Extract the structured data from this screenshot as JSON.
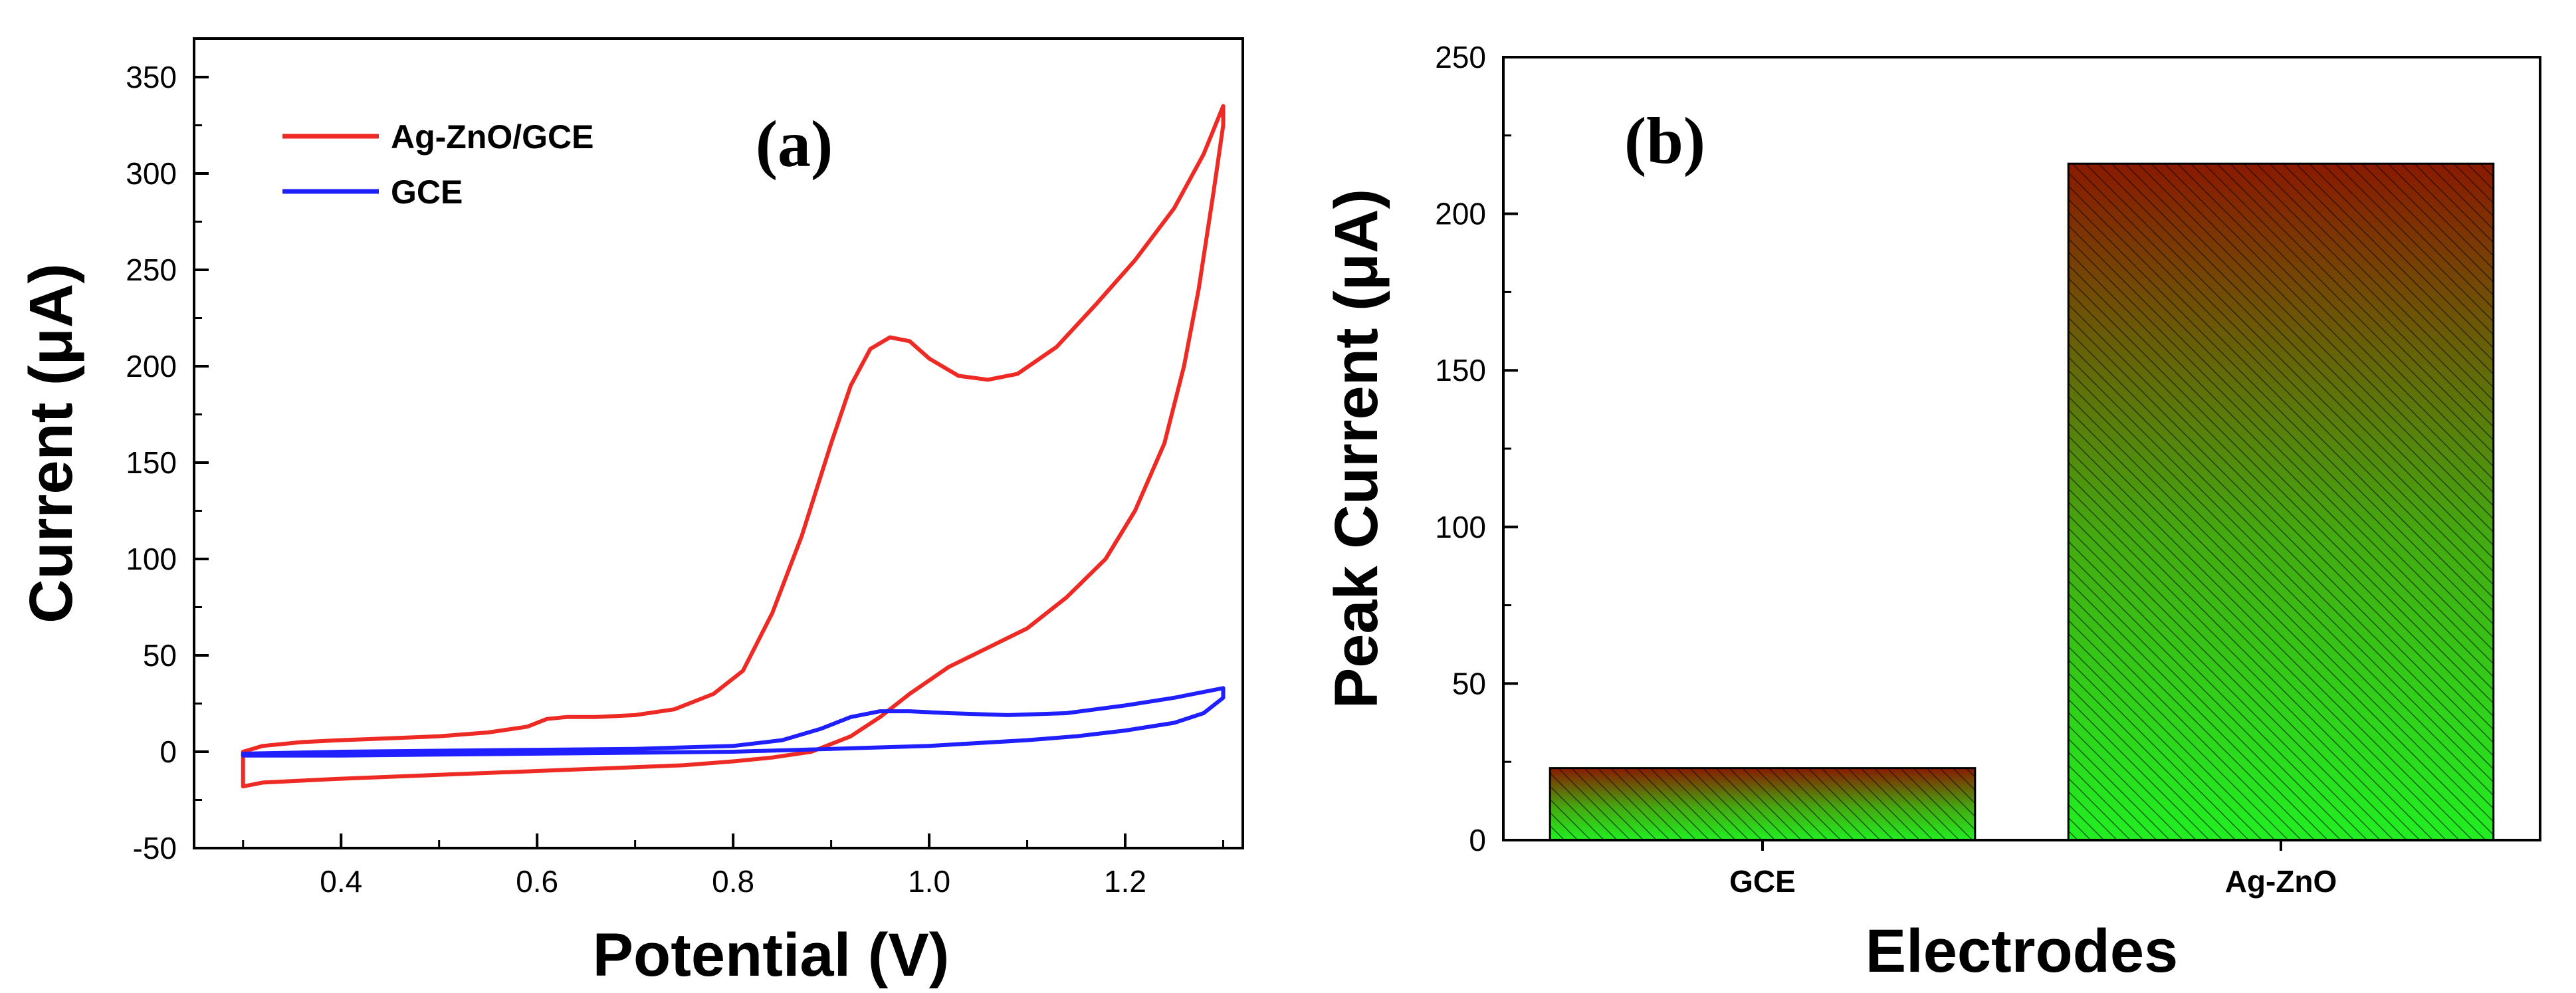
{
  "colors": {
    "ag_zno": "#ee2a24",
    "gce": "#1f1fff",
    "bar_top": "#8a1a00",
    "bar_bottom": "#22ee22"
  },
  "chart_data": [
    {
      "type": "line",
      "panel_label": "(a)",
      "xlabel": "Potential (V)",
      "ylabel": "Current (μA)",
      "xlim": [
        0.25,
        1.32
      ],
      "ylim": [
        -50,
        370
      ],
      "xticks": [
        0.4,
        0.6,
        0.8,
        1.0,
        1.2
      ],
      "xtick_labels": [
        "0.4",
        "0.6",
        "0.8",
        "1.0",
        "1.2"
      ],
      "yticks": [
        -50,
        0,
        50,
        100,
        150,
        200,
        250,
        300,
        350
      ],
      "ytick_labels": [
        "-50",
        "0",
        "50",
        "100",
        "150",
        "200",
        "250",
        "300",
        "350"
      ],
      "legend_position": "top-left",
      "series": [
        {
          "name": "Ag-ZnO/GCE",
          "color_key": "ag_zno",
          "points": [
            [
              0.3,
              0
            ],
            [
              0.32,
              3
            ],
            [
              0.36,
              5
            ],
            [
              0.4,
              6
            ],
            [
              0.45,
              7
            ],
            [
              0.5,
              8
            ],
            [
              0.55,
              10
            ],
            [
              0.59,
              13
            ],
            [
              0.61,
              17
            ],
            [
              0.63,
              18
            ],
            [
              0.66,
              18
            ],
            [
              0.7,
              19
            ],
            [
              0.74,
              22
            ],
            [
              0.78,
              30
            ],
            [
              0.81,
              42
            ],
            [
              0.84,
              72
            ],
            [
              0.87,
              112
            ],
            [
              0.9,
              160
            ],
            [
              0.92,
              190
            ],
            [
              0.94,
              209
            ],
            [
              0.96,
              215
            ],
            [
              0.98,
              213
            ],
            [
              1.0,
              204
            ],
            [
              1.03,
              195
            ],
            [
              1.06,
              193
            ],
            [
              1.09,
              196
            ],
            [
              1.13,
              210
            ],
            [
              1.17,
              232
            ],
            [
              1.21,
              255
            ],
            [
              1.25,
              282
            ],
            [
              1.28,
              310
            ],
            [
              1.3,
              335
            ],
            [
              1.3,
              325
            ],
            [
              1.29,
              290
            ],
            [
              1.275,
              240
            ],
            [
              1.26,
              200
            ],
            [
              1.24,
              160
            ],
            [
              1.21,
              125
            ],
            [
              1.18,
              100
            ],
            [
              1.14,
              80
            ],
            [
              1.1,
              64
            ],
            [
              1.06,
              54
            ],
            [
              1.02,
              44
            ],
            [
              0.98,
              30
            ],
            [
              0.95,
              18
            ],
            [
              0.92,
              8
            ],
            [
              0.88,
              0
            ],
            [
              0.84,
              -3
            ],
            [
              0.8,
              -5
            ],
            [
              0.75,
              -7
            ],
            [
              0.7,
              -8
            ],
            [
              0.6,
              -10
            ],
            [
              0.5,
              -12
            ],
            [
              0.4,
              -14
            ],
            [
              0.32,
              -16
            ],
            [
              0.3,
              -18
            ],
            [
              0.3,
              -9
            ],
            [
              0.3,
              0
            ]
          ]
        },
        {
          "name": "GCE",
          "color_key": "gce",
          "points": [
            [
              0.3,
              -1
            ],
            [
              0.4,
              0
            ],
            [
              0.5,
              0.5
            ],
            [
              0.6,
              1
            ],
            [
              0.7,
              1.5
            ],
            [
              0.8,
              3
            ],
            [
              0.85,
              6
            ],
            [
              0.89,
              12
            ],
            [
              0.92,
              18
            ],
            [
              0.95,
              21
            ],
            [
              0.98,
              21
            ],
            [
              1.02,
              20
            ],
            [
              1.08,
              19
            ],
            [
              1.14,
              20
            ],
            [
              1.2,
              24
            ],
            [
              1.25,
              28
            ],
            [
              1.29,
              32
            ],
            [
              1.3,
              33
            ],
            [
              1.3,
              28
            ],
            [
              1.28,
              20
            ],
            [
              1.25,
              15
            ],
            [
              1.2,
              11
            ],
            [
              1.15,
              8
            ],
            [
              1.1,
              6
            ],
            [
              1.0,
              3
            ],
            [
              0.9,
              1.5
            ],
            [
              0.8,
              0
            ],
            [
              0.7,
              -0.5
            ],
            [
              0.6,
              -1
            ],
            [
              0.5,
              -1.5
            ],
            [
              0.4,
              -2
            ],
            [
              0.3,
              -2
            ],
            [
              0.3,
              -1
            ]
          ]
        }
      ]
    },
    {
      "type": "bar",
      "panel_label": "(b)",
      "xlabel": "Electrodes",
      "ylabel": "Peak Current (μA)",
      "ylim": [
        0,
        250
      ],
      "yticks": [
        0,
        50,
        100,
        150,
        200,
        250
      ],
      "ytick_labels": [
        "0",
        "50",
        "100",
        "150",
        "200",
        "250"
      ],
      "categories": [
        "GCE",
        "Ag-ZnO"
      ],
      "values": [
        23,
        216
      ]
    }
  ]
}
